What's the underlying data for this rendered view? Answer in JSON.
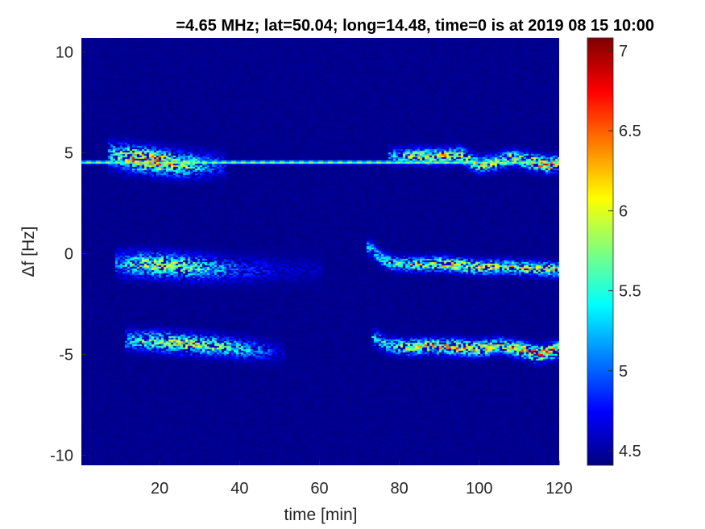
{
  "chart_data": {
    "type": "heatmap",
    "title": "=4.65 MHz;  lat=50.04; long=14.48, time=0 is at 2019 08 15 10:00",
    "xlabel": "time [min]",
    "ylabel": "Δf [Hz]",
    "xlim": [
      0.4,
      120
    ],
    "ylim": [
      -10.5,
      10.7
    ],
    "xticks": [
      20,
      40,
      60,
      80,
      100,
      120
    ],
    "yticks": [
      -10,
      -5,
      0,
      5,
      10
    ],
    "xtick_labels": [
      "20",
      "40",
      "60",
      "80",
      "100",
      "120"
    ],
    "ytick_labels": [
      "-10",
      "-5",
      "0",
      "5",
      "10"
    ],
    "colormap": "jet",
    "clim": [
      4.41,
      7.08
    ],
    "colorbar_ticks": [
      4.5,
      5,
      5.5,
      6,
      6.5,
      7
    ],
    "colorbar_tick_labels": [
      "4.5",
      "5",
      "5.5",
      "6",
      "6.5",
      "7"
    ],
    "background_level": 4.45,
    "features": [
      {
        "t": [
          0,
          120
        ],
        "df": [
          4.52,
          4.52
        ],
        "peak": [
          5.9,
          5.9
        ],
        "width_hz": 0.08
      },
      {
        "t": [
          8,
          14,
          20,
          26,
          32,
          36
        ],
        "df": [
          4.9,
          4.7,
          4.55,
          4.4,
          4.4,
          4.4
        ],
        "peak": [
          5.6,
          6.6,
          6.6,
          6.0,
          5.3,
          4.9
        ],
        "width_hz": 0.55
      },
      {
        "t": [
          78,
          83,
          90,
          95,
          100,
          104,
          108,
          113,
          117,
          120
        ],
        "df": [
          4.8,
          4.85,
          4.8,
          4.9,
          4.4,
          4.5,
          4.75,
          4.55,
          4.4,
          4.5
        ],
        "peak": [
          5.4,
          6.0,
          6.3,
          6.3,
          6.1,
          6.0,
          6.1,
          6.4,
          6.6,
          6.3
        ],
        "width_hz": 0.35
      },
      {
        "t": [
          10,
          15,
          22,
          30,
          38,
          50,
          60
        ],
        "df": [
          -0.5,
          -0.55,
          -0.6,
          -0.7,
          -0.8,
          -0.8,
          -0.8
        ],
        "peak": [
          5.2,
          6.0,
          6.1,
          5.7,
          5.1,
          4.7,
          4.6
        ],
        "width_hz": 0.55
      },
      {
        "t": [
          73,
          75,
          78,
          84,
          90,
          96,
          100,
          105,
          110,
          115,
          120
        ],
        "df": [
          0.3,
          -0.2,
          -0.5,
          -0.55,
          -0.5,
          -0.6,
          -0.7,
          -0.65,
          -0.7,
          -0.75,
          -0.8
        ],
        "peak": [
          5.5,
          5.6,
          5.8,
          6.0,
          6.3,
          6.2,
          6.4,
          6.0,
          6.2,
          6.1,
          6.2
        ],
        "width_hz": 0.32
      },
      {
        "t": [
          12,
          18,
          25,
          32,
          40,
          46,
          50
        ],
        "df": [
          -4.3,
          -4.35,
          -4.45,
          -4.55,
          -4.7,
          -4.85,
          -4.9
        ],
        "peak": [
          5.4,
          5.9,
          6.1,
          6.0,
          5.6,
          5.1,
          4.7
        ],
        "width_hz": 0.45
      },
      {
        "t": [
          74,
          77,
          82,
          88,
          95,
          100,
          105,
          110,
          115,
          120
        ],
        "df": [
          -4.2,
          -4.55,
          -4.65,
          -4.6,
          -4.65,
          -4.75,
          -4.55,
          -4.75,
          -5.0,
          -4.75
        ],
        "peak": [
          5.5,
          5.7,
          6.2,
          6.3,
          6.4,
          6.6,
          6.0,
          6.4,
          6.8,
          6.5
        ],
        "width_hz": 0.35
      }
    ]
  }
}
